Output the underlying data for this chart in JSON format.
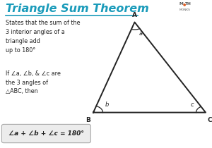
{
  "title": "Triangle Sum Theorem",
  "title_color": "#1a9bba",
  "title_underline_color": "#1a9bba",
  "bg_color": "#ffffff",
  "text1": "States that the sum of the\n3 interior angles of a\ntriangle add\nup to 180°",
  "text2": "If ∠a, ∠b, & ∠c are\nthe 3 angles of\n△ABC, then",
  "formula": "∠a + ∠b + ∠c = 180°",
  "formula_bg": "#ececec",
  "formula_border": "#aaaaaa",
  "triangle_A": [
    0.635,
    0.85
  ],
  "triangle_B": [
    0.44,
    0.24
  ],
  "triangle_C": [
    0.97,
    0.24
  ],
  "label_A": "A",
  "label_B": "B",
  "label_C": "C",
  "label_a": "a",
  "label_b": "b",
  "label_c": "c",
  "triangle_color": "#222222",
  "math_monks_color": "#555555",
  "math_monks_dot_color": "#e05a1e",
  "text_color": "#222222"
}
